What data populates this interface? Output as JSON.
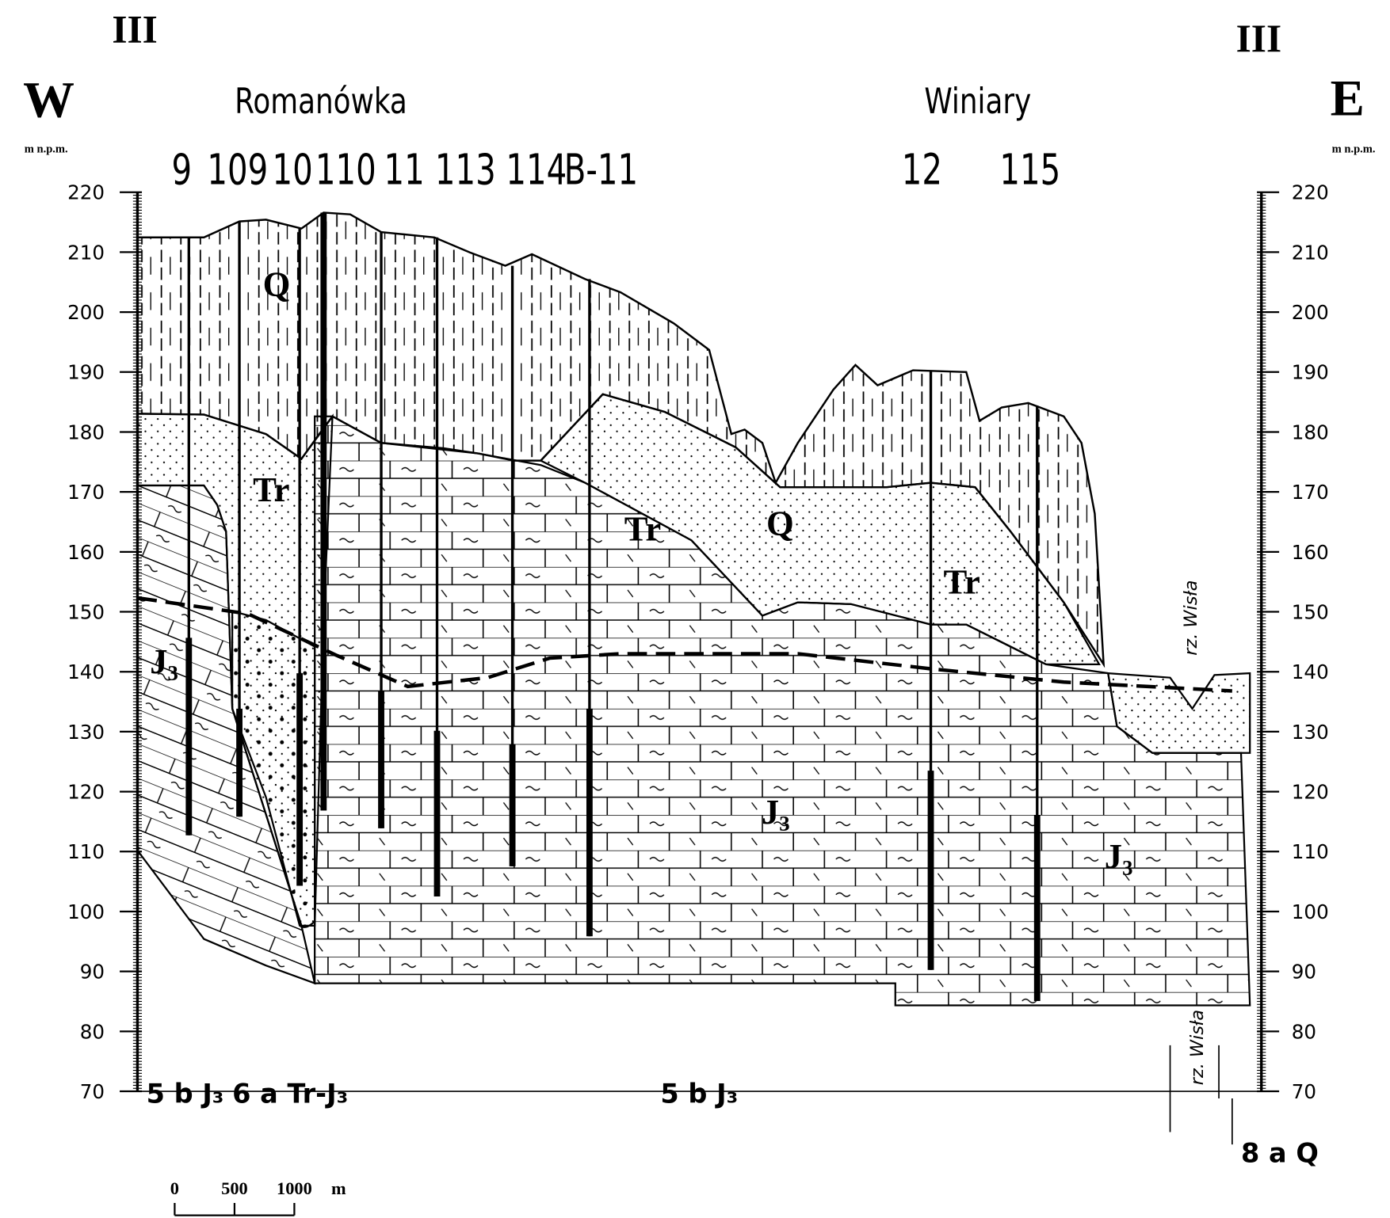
{
  "header": {
    "section_left": "III",
    "section_right": "III",
    "west": "W",
    "east": "E",
    "unit_left": "m n.p.m.",
    "unit_right": "m n.p.m.",
    "place_1": "Romanówka",
    "place_2": "Winiary"
  },
  "wells": [
    "9",
    "109",
    "10",
    "110",
    "11",
    "113",
    "114",
    "B-11",
    "12",
    "115"
  ],
  "elevation_axis": {
    "ylim": [
      70,
      220
    ],
    "ticks": [
      70,
      80,
      90,
      100,
      110,
      120,
      130,
      140,
      150,
      160,
      170,
      180,
      190,
      200,
      210,
      220
    ]
  },
  "layers": [
    "Q",
    "Tr",
    "Tr",
    "Q",
    "Tr",
    "J₃",
    "J₃",
    "J₃"
  ],
  "river": [
    "rz. Wisła",
    "rz. Wisła"
  ],
  "bottom_labels": [
    "5 b J₃",
    "6 a Tr-J₃",
    "5 b J₃",
    "8 a Q"
  ],
  "scale_bar": {
    "ticks": [
      0,
      500,
      1000
    ],
    "unit": "m"
  }
}
